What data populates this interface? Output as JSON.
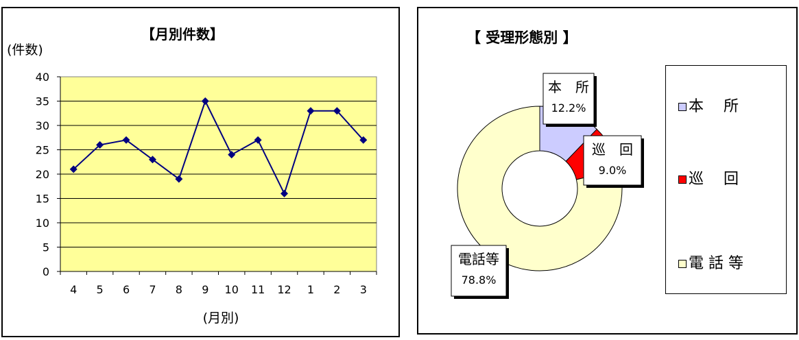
{
  "chart_data": [
    {
      "type": "line",
      "title": "【月別件数】",
      "ylabel": "(件数)",
      "xlabel": "(月別)",
      "categories": [
        "4",
        "5",
        "6",
        "7",
        "8",
        "9",
        "10",
        "11",
        "12",
        "1",
        "2",
        "3"
      ],
      "series": [
        {
          "values": [
            21,
            26,
            27,
            23,
            19,
            35,
            24,
            27,
            16,
            33,
            33,
            27
          ],
          "color": "#000080"
        }
      ],
      "ylim": [
        0,
        40
      ],
      "yticks": [
        "0",
        "5",
        "10",
        "15",
        "20",
        "25",
        "30",
        "35",
        "40"
      ],
      "grid": true,
      "plot_background": "#ffff99"
    },
    {
      "type": "pie",
      "style": "donut",
      "title": "【 受理形態別 】",
      "legend_position": "right",
      "slices": [
        {
          "label": "本　所",
          "legend_label": "本　 所",
          "value": 12.2,
          "value_text": "12.2%",
          "color": "#ccccff"
        },
        {
          "label": "巡　回",
          "legend_label": "巡　 回",
          "value": 9.0,
          "value_text": "9.0%",
          "color": "#ff0000"
        },
        {
          "label": "電話等",
          "legend_label": "電 話 等",
          "value": 78.8,
          "value_text": "78.8%",
          "color": "#ffffcc"
        }
      ]
    }
  ]
}
